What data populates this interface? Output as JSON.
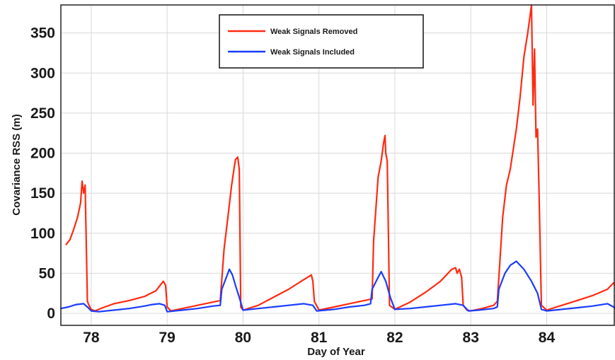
{
  "chart_data": {
    "type": "line",
    "title": "",
    "xlabel": "Day of Year",
    "ylabel": "Covariance RSS (m)",
    "xlim": [
      77.6,
      84.9
    ],
    "ylim": [
      -15,
      385
    ],
    "xticks": [
      78,
      79,
      80,
      81,
      82,
      83,
      84
    ],
    "yticks": [
      0,
      50,
      100,
      150,
      200,
      250,
      300,
      350
    ],
    "grid": true,
    "legend_position": "top-center",
    "series": [
      {
        "name": "Weak Signals Removed",
        "color": "#ff2a10",
        "points": [
          [
            77.67,
            86
          ],
          [
            77.72,
            92
          ],
          [
            77.77,
            105
          ],
          [
            77.82,
            120
          ],
          [
            77.86,
            138
          ],
          [
            77.88,
            165
          ],
          [
            77.9,
            150
          ],
          [
            77.92,
            160
          ],
          [
            77.95,
            15
          ],
          [
            77.97,
            10
          ],
          [
            78.0,
            5
          ],
          [
            78.05,
            3
          ],
          [
            78.15,
            7
          ],
          [
            78.3,
            12
          ],
          [
            78.5,
            16
          ],
          [
            78.7,
            21
          ],
          [
            78.85,
            28
          ],
          [
            78.95,
            40
          ],
          [
            78.98,
            35
          ],
          [
            79.0,
            8
          ],
          [
            79.05,
            3
          ],
          [
            79.2,
            6
          ],
          [
            79.4,
            10
          ],
          [
            79.6,
            14
          ],
          [
            79.7,
            16
          ],
          [
            79.75,
            80
          ],
          [
            79.8,
            120
          ],
          [
            79.85,
            160
          ],
          [
            79.88,
            180
          ],
          [
            79.9,
            192
          ],
          [
            79.93,
            195
          ],
          [
            79.95,
            180
          ],
          [
            79.97,
            8
          ],
          [
            80.0,
            4
          ],
          [
            80.2,
            10
          ],
          [
            80.4,
            20
          ],
          [
            80.6,
            30
          ],
          [
            80.8,
            42
          ],
          [
            80.9,
            48
          ],
          [
            80.92,
            40
          ],
          [
            80.94,
            15
          ],
          [
            81.0,
            4
          ],
          [
            81.2,
            8
          ],
          [
            81.4,
            12
          ],
          [
            81.6,
            16
          ],
          [
            81.7,
            18
          ],
          [
            81.72,
            90
          ],
          [
            81.75,
            130
          ],
          [
            81.78,
            170
          ],
          [
            81.82,
            190
          ],
          [
            81.85,
            212
          ],
          [
            81.87,
            222
          ],
          [
            81.88,
            200
          ],
          [
            81.9,
            190
          ],
          [
            81.93,
            10
          ],
          [
            82.0,
            5
          ],
          [
            82.2,
            14
          ],
          [
            82.4,
            26
          ],
          [
            82.6,
            40
          ],
          [
            82.75,
            55
          ],
          [
            82.8,
            57
          ],
          [
            82.82,
            50
          ],
          [
            82.85,
            55
          ],
          [
            82.88,
            45
          ],
          [
            82.9,
            10
          ],
          [
            82.95,
            4
          ],
          [
            83.0,
            3
          ],
          [
            83.15,
            6
          ],
          [
            83.3,
            10
          ],
          [
            83.35,
            15
          ],
          [
            83.38,
            60
          ],
          [
            83.42,
            120
          ],
          [
            83.47,
            160
          ],
          [
            83.52,
            180
          ],
          [
            83.6,
            230
          ],
          [
            83.65,
            270
          ],
          [
            83.7,
            320
          ],
          [
            83.75,
            350
          ],
          [
            83.8,
            385
          ],
          [
            83.82,
            260
          ],
          [
            83.84,
            330
          ],
          [
            83.86,
            220
          ],
          [
            83.88,
            230
          ],
          [
            83.9,
            150
          ],
          [
            83.93,
            10
          ],
          [
            84.0,
            4
          ],
          [
            84.2,
            10
          ],
          [
            84.4,
            16
          ],
          [
            84.6,
            22
          ],
          [
            84.8,
            30
          ],
          [
            84.88,
            38
          ],
          [
            84.9,
            35
          ]
        ]
      },
      {
        "name": "Weak Signals Included",
        "color": "#1a3cff",
        "points": [
          [
            77.6,
            6
          ],
          [
            77.7,
            8
          ],
          [
            77.8,
            11
          ],
          [
            77.9,
            12
          ],
          [
            77.95,
            8
          ],
          [
            78.0,
            3
          ],
          [
            78.1,
            2
          ],
          [
            78.3,
            4
          ],
          [
            78.5,
            6
          ],
          [
            78.7,
            9
          ],
          [
            78.8,
            11
          ],
          [
            78.9,
            12
          ],
          [
            78.97,
            10
          ],
          [
            79.0,
            2
          ],
          [
            79.2,
            4
          ],
          [
            79.4,
            6
          ],
          [
            79.6,
            9
          ],
          [
            79.7,
            10
          ],
          [
            79.72,
            30
          ],
          [
            79.78,
            45
          ],
          [
            79.82,
            55
          ],
          [
            79.86,
            48
          ],
          [
            79.9,
            35
          ],
          [
            79.95,
            20
          ],
          [
            80.0,
            4
          ],
          [
            80.2,
            6
          ],
          [
            80.4,
            8
          ],
          [
            80.6,
            10
          ],
          [
            80.8,
            12
          ],
          [
            80.92,
            10
          ],
          [
            80.97,
            3
          ],
          [
            81.2,
            5
          ],
          [
            81.4,
            8
          ],
          [
            81.6,
            10
          ],
          [
            81.68,
            12
          ],
          [
            81.7,
            30
          ],
          [
            81.78,
            45
          ],
          [
            81.82,
            52
          ],
          [
            81.88,
            40
          ],
          [
            81.94,
            20
          ],
          [
            82.0,
            5
          ],
          [
            82.2,
            6
          ],
          [
            82.4,
            8
          ],
          [
            82.6,
            10
          ],
          [
            82.8,
            12
          ],
          [
            82.9,
            10
          ],
          [
            82.97,
            3
          ],
          [
            83.1,
            4
          ],
          [
            83.3,
            6
          ],
          [
            83.35,
            8
          ],
          [
            83.37,
            30
          ],
          [
            83.45,
            50
          ],
          [
            83.52,
            60
          ],
          [
            83.6,
            65
          ],
          [
            83.7,
            55
          ],
          [
            83.8,
            40
          ],
          [
            83.88,
            25
          ],
          [
            83.93,
            5
          ],
          [
            84.0,
            3
          ],
          [
            84.2,
            5
          ],
          [
            84.4,
            7
          ],
          [
            84.6,
            9
          ],
          [
            84.8,
            12
          ],
          [
            84.88,
            8
          ],
          [
            84.92,
            5
          ]
        ]
      }
    ]
  }
}
